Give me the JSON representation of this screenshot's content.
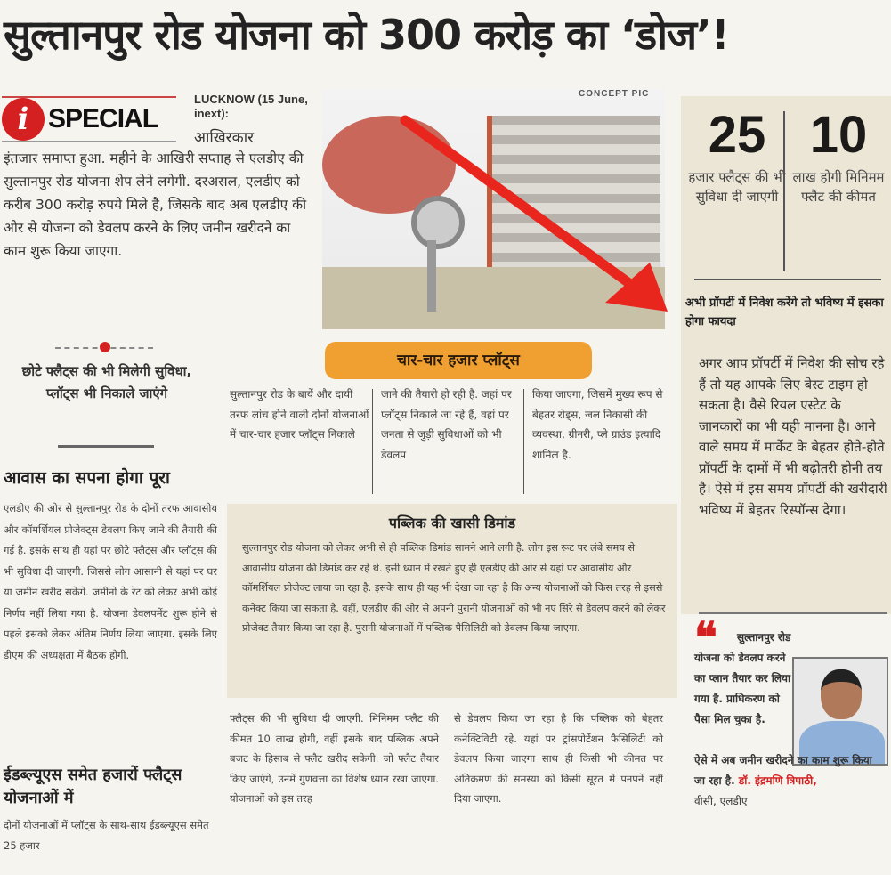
{
  "headline": "सुल्तानपुर रोड योजना को 300 करोड़ का ‘डोज’!",
  "badge": {
    "letter": "i",
    "label": "SPECIAL"
  },
  "dateline": "LUCKNOW (15 June, inext):",
  "lead_first": "आखिरकार",
  "intro": "इंतजार समाप्त हुआ. महीने के आखिरी सप्ताह से एलडीए की सुल्तानपुर रोड योजना शेप लेने लगेगी. दरअसल, एलडीए को करीब 300 करोड़ रुपये मिले है, जिसके बाद अब एलडीए की ओर से योजना को डेवलप करने के लिए जमीन खरीदने का काम शुरू किया जाएगा.",
  "photo_caption": "CONCEPT PIC",
  "facts": [
    {
      "number": "25",
      "text": "हजार फ्लैट्स की भी सुविधा दी जाएगी"
    },
    {
      "number": "10",
      "text": "लाख होगी मिनिमम फ्लैट की कीमत"
    }
  ],
  "investment": {
    "heading": "अभी प्रॉपर्टी में निवेश करेंगे तो भविष्य में इसका होगा फायदा",
    "body": "अगर आप प्रॉपर्टी में निवेश की सोच रहे हैं तो यह आपके लिए बेस्ट टाइम हो सकता है। वैसे रियल एस्टेट के जानकारों का भी यही मानना है। आने वाले समय में मार्केट के बेहतर होते-होते प्रॉपर्टी के दामों में भी बढ़ोतरी होनी तय है। ऐसे में इस समय प्रॉपर्टी की खरीदारी भविष्य में बेहतर रिस्पॉन्स देगा।"
  },
  "quote": {
    "mark": "❝",
    "text_top": "सुल्तानपुर रोड योजना को डेवलप करने का प्लान तैयार कर लिया गया है. प्राधिकरण को पैसा मिल चुका है.",
    "text_bottom": "ऐसे में अब जमीन खरीदने का काम शुरू किया जा रहा है.",
    "name": "डॉ. इंद्रमणि त्रिपाठी,",
    "designation": "वीसी, एलडीए"
  },
  "subhead_small": "छोटे फ्लैट्स की भी मिलेगी सुविधा, प्लॉट्स भी निकाले जाएंगे",
  "awas": {
    "heading": "आवास का सपना होगा पूरा",
    "body": "एलडीए की ओर से सुल्तानपुर रोड के दोनों तरफ आवासीय और कॉमर्शियल प्रोजेक्ट्स डेवलप किए जाने की तैयारी की गई है. इसके साथ ही यहां पर छोटे फ्लैट्स और प्लॉट्स की भी सुविधा दी जाएगी. जिससे लोग आसानी से यहां पर घर या जमीन खरीद सकेंगे. जमीनों के रेट को लेकर अभी कोई निर्णय नहीं लिया गया है. योजना डेवलपमेंट शुरू होने से पहले इसको लेकर अंतिम निर्णय लिया जाएगा. इसके लिए डीएम की अध्यक्षता में बैठक होगी."
  },
  "ews": {
    "heading": "ईडब्ल्यूएस समेत हजारों फ्लैट्स योजनाओं में",
    "body": "दोनों योजनाओं में प्लॉट्स के साथ-साथ ईडब्ल्यूएस समेत 25 हजार"
  },
  "plots": {
    "heading": "चार-चार हजार प्लॉट्स",
    "columns": [
      "सुल्तानपुर रोड के बायें और दायीं तरफ लांच होने वाली दोनों योजनाओं में चार-चार हजार प्लॉट्स निकाले",
      "जाने की तैयारी हो रही है. जहां पर प्लॉट्स निकाले जा रहे हैं, वहां पर जनता से जुड़ी सुविधाओं को भी डेवलप",
      "किया जाएगा, जिसमें मुख्य रूप से बेहतर रोड्स, जल निकासी की व्यवस्था, ग्रीनरी, प्ले ग्राउंड इत्यादि शामिल है."
    ]
  },
  "demand": {
    "heading": "पब्लिक की खासी डिमांड",
    "body": "सुल्तानपुर रोड योजना को लेकर अभी से ही पब्लिक डिमांड सामने आने लगी है. लोग इस रूट पर लंबे समय से आवासीय योजना की डिमांड कर रहे थे. इसी ध्यान में रखते हुए ही एलडीए की ओर से यहां पर आवासीय और कॉमर्शियल प्रोजेक्ट लाया जा रहा है. इसके साथ ही यह भी देखा जा रहा है कि अन्य योजनाओं को किस तरह से इससे कनेक्ट किया जा सकता है. वहीं, एलडीए की ओर से अपनी पुरानी योजनाओं को भी नए सिरे से डेवलप करने को लेकर प्रोजेक्ट तैयार किया जा रहा है. पुरानी योजनाओं में पब्लिक पैसिलिटी को डेवलप किया जाएगा."
  },
  "bottom_columns": [
    "फ्लैट्स की भी सुविधा दी जाएगी. मिनिमम फ्लैट की कीमत 10 लाख होगी, वहीं इसके बाद पब्लिक अपने बजट के हिसाब से फ्लैट खरीद सकेगी. जो फ्लैट तैयार किए जाएंगे, उनमें गुणवत्ता का विशेष ध्यान रखा जाएगा. योजनाओं को इस तरह",
    "से डेवलप किया जा रहा है कि पब्लिक को बेहतर कनेक्टिविटी रहे. यहां पर ट्रांसपोर्टेशन फैसिलिटी को डेवलप किया जाएगा साथ ही किसी भी कीमत पर अतिक्रमण की समस्या को किसी सूरत में पनपने नहीं दिया जाएगा."
  ],
  "colors": {
    "accent_red": "#d42020",
    "pill_orange": "#f0a030",
    "box_beige": "#ece6d6"
  }
}
